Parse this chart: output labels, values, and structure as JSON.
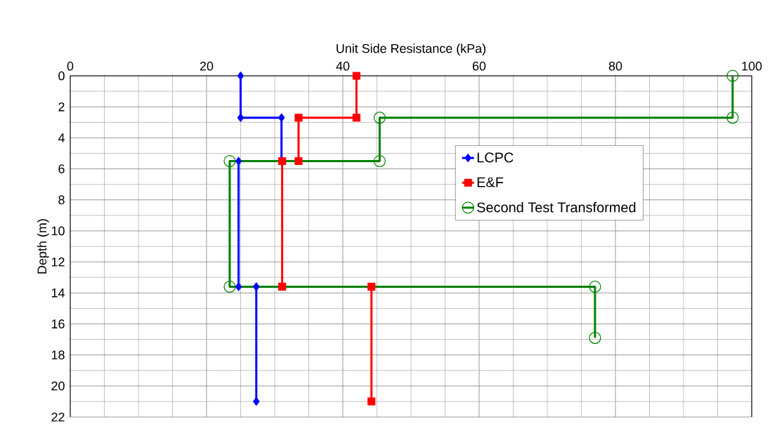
{
  "chart_data": {
    "type": "line",
    "xlabel": "Unit Side Resistance (kPa)",
    "ylabel": "Depth (m)",
    "xlim": [
      0,
      100
    ],
    "xticks": [
      0,
      20,
      40,
      60,
      80,
      100
    ],
    "ylim": [
      22,
      0
    ],
    "yticks": [
      0,
      2,
      4,
      6,
      8,
      10,
      12,
      14,
      16,
      18,
      20,
      22
    ],
    "grid": true,
    "legend": "right",
    "line_style": "solid",
    "series": [
      {
        "name": "LCPC",
        "color": "#0000ff",
        "marker": "diamond",
        "x": [
          25,
          25,
          31,
          31,
          24.7,
          24.7,
          27.3,
          27.3
        ],
        "values": [
          0,
          2.7,
          2.7,
          5.5,
          5.5,
          13.6,
          13.6,
          21
        ]
      },
      {
        "name": "E&F",
        "color": "#ff0000",
        "marker": "square",
        "x": [
          42,
          42,
          33.5,
          33.5,
          31.1,
          31.1,
          44.2,
          44.2
        ],
        "values": [
          0,
          2.7,
          2.7,
          5.5,
          5.5,
          13.6,
          13.6,
          21
        ]
      },
      {
        "name": "Second Test Transformed",
        "color": "#008000",
        "marker": "circle",
        "x": [
          97.2,
          97.2,
          45.4,
          45.4,
          23.4,
          23.4,
          77,
          77
        ],
        "values": [
          0,
          2.7,
          2.7,
          5.5,
          5.5,
          13.6,
          13.6,
          16.9
        ]
      }
    ]
  }
}
